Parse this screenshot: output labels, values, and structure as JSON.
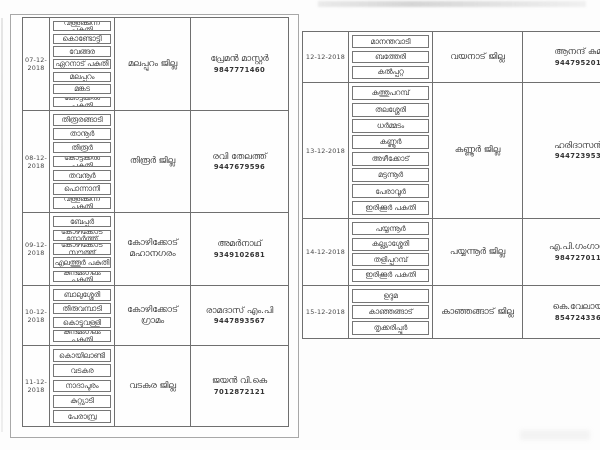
{
  "pages": [
    {
      "side": "left",
      "rows": [
        {
          "date": "07-12-2018",
          "places": [
            "വള്ളിക്കുന്ന് പകുതി",
            "കൊണ്ടോട്ടി",
            "വേങ്ങര",
            "ഏറനാട് പകുതി",
            "മലപ്പുറം",
            "മങ്കട",
            "കോട്ടക്കൽ പകുതി"
          ],
          "district": "മലപ്പുറം ജില്ല",
          "contact_name": "പ്രേമൻ മാസ്റ്റർ",
          "phone": "9847771460"
        },
        {
          "date": "08-12-2018",
          "places": [
            "തിരൂരങ്ങാടി",
            "താനൂർ",
            "തിരൂർ",
            "കോട്ടക്കൽ പകുതി",
            "തവനൂർ",
            "പൊന്നാനി",
            "വള്ളിക്കുന്ന് പകുതി"
          ],
          "district": "തിരൂർ ജില്ല",
          "contact_name": "രവി തേലത്ത്",
          "phone": "9447679596"
        },
        {
          "date": "09-12-2018",
          "places": [
            "ബേപ്പൂർ",
            "കോഴിക്കോട് നോർത്ത്",
            "കോഴിക്കോട് സൗത്ത്",
            "എലത്തൂർ പകുതി",
            "കുന്ദമംഗലം പകുതി"
          ],
          "district": "കോഴിക്കോട് മഹാനഗരം",
          "contact_name": "അമർനാഥ്",
          "phone": "9349102681"
        },
        {
          "date": "10-12-2018",
          "places": [
            "ബാലുശ്ശേരി",
            "തിരുവമ്പാടി",
            "കൊടുവള്ളി",
            "കുന്ദമംഗലം പകുതി"
          ],
          "district": "കോഴിക്കോട് ഗ്രാമം",
          "contact_name": "രാമദാസ് എം.പി",
          "phone": "9447893567"
        },
        {
          "date": "11-12-2018",
          "places": [
            "കൊയിലാണ്ടി",
            "വടകര",
            "നാദാപുരം",
            "കുറ്റ്യാടി",
            "പേരാമ്പ്ര"
          ],
          "district": "വടകര ജില്ല",
          "contact_name": "ജയൻ വി.കെ",
          "phone": "7012872121"
        }
      ]
    },
    {
      "side": "right",
      "rows": [
        {
          "date": "12-12-2018",
          "places": [
            "മാനന്തവാടി",
            "ബത്തേരി",
            "കൽപ്പറ്റ"
          ],
          "district": "വയനാട് ജില്ല",
          "contact_name": "ആനന്ദ് കുമ",
          "phone": "944795201"
        },
        {
          "date": "13-12-2018",
          "places": [
            "കുത്തുപറമ്പ്",
            "തലശ്ശേരി",
            "ധർമ്മടം",
            "കണ്ണൂർ",
            "അഴീക്കോട്",
            "മട്ടന്നൂർ",
            "പേരാവൂർ",
            "ഇരിക്കൂർ പകുതി"
          ],
          "district": "കണ്ണൂർ ജില്ല",
          "contact_name": "ഹരിദാസൻ",
          "phone": "944723953"
        },
        {
          "date": "14-12-2018",
          "places": [
            "പയ്യന്നൂർ",
            "കല്ല്യാശ്ശേരി",
            "തളിപ്പറമ്പ്",
            "ഇരിക്കൂർ പകുതി"
          ],
          "district": "പയ്യന്നൂർ ജില്ല",
          "contact_name": "എ.പി.ഗംഗാധ",
          "phone": "984727011"
        },
        {
          "date": "15-12-2018",
          "places": [
            "ഉദുമ",
            "കാഞ്ഞങ്ങാട്",
            "തൃക്കരിപ്പൂർ"
          ],
          "district": "കാഞ്ഞങ്ങാട് ജില്ല",
          "contact_name": "കെ.വേലായു",
          "phone": "854724336"
        }
      ]
    }
  ]
}
